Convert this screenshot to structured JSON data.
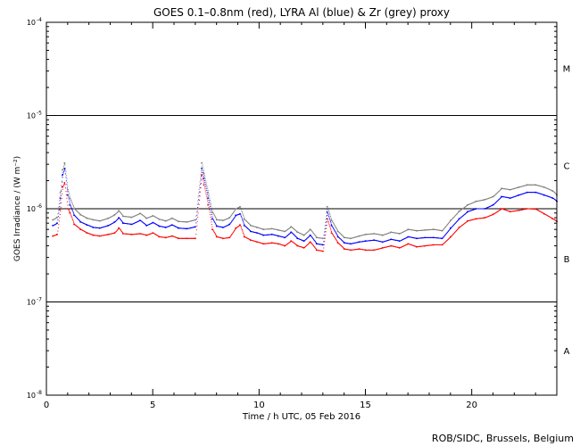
{
  "chart_data": {
    "type": "scatter",
    "title": "GOES 0.1–0.8nm (red), LYRA Al (blue) & Zr (grey) proxy",
    "xlabel": "Time / h UTC, 05 Feb 2016",
    "ylabel": "GOES Irradiance / (W m⁻²)",
    "xlim": [
      0,
      24
    ],
    "ylim": [
      1e-08,
      0.0001
    ],
    "yscale": "log",
    "x_ticks": [
      0,
      5,
      10,
      15,
      20
    ],
    "y_ticks": [
      {
        "value": 0.0001,
        "base": "10",
        "exp": "-4"
      },
      {
        "value": 1e-05,
        "base": "10",
        "exp": "-5"
      },
      {
        "value": 1e-06,
        "base": "10",
        "exp": "-6"
      },
      {
        "value": 1e-07,
        "base": "10",
        "exp": "-7"
      },
      {
        "value": 1e-08,
        "base": "10",
        "exp": "-8"
      }
    ],
    "class_lines": [
      1e-05,
      1e-06,
      1e-07
    ],
    "flare_classes": [
      {
        "label": "M",
        "y": 3.2e-05
      },
      {
        "label": "C",
        "y": 2.9e-06
      },
      {
        "label": "B",
        "y": 2.9e-07
      },
      {
        "label": "A",
        "y": 3e-08
      }
    ],
    "credit": "ROB/SIDC, Brussels, Belgium",
    "x": [
      0.3,
      0.5,
      0.65,
      0.75,
      0.85,
      1.0,
      1.1,
      1.3,
      1.6,
      1.9,
      2.2,
      2.5,
      2.9,
      3.2,
      3.4,
      3.6,
      4.0,
      4.4,
      4.7,
      5.0,
      5.3,
      5.6,
      5.9,
      6.2,
      6.6,
      7.0,
      7.3,
      7.4,
      7.6,
      7.8,
      8.0,
      8.3,
      8.6,
      8.9,
      9.1,
      9.3,
      9.6,
      9.9,
      10.2,
      10.6,
      10.9,
      11.2,
      11.5,
      11.8,
      12.1,
      12.4,
      12.7,
      13.0,
      13.2,
      13.4,
      13.7,
      14.0,
      14.3,
      14.7,
      15.0,
      15.4,
      15.8,
      16.2,
      16.6,
      17.0,
      17.4,
      17.8,
      18.2,
      18.6,
      19.0,
      19.4,
      19.8,
      20.2,
      20.6,
      21.0,
      21.4,
      21.8,
      22.2,
      22.6,
      23.0,
      23.4,
      23.8,
      24.0
    ],
    "series": [
      {
        "name": "GOES 0.1–0.8nm",
        "color": "#ff0000",
        "values": [
          5.1e-07,
          5.3e-07,
          9.8e-07,
          1.7e-06,
          1.9e-06,
          1e-06,
          9e-07,
          6.8e-07,
          6e-07,
          5.5e-07,
          5.2e-07,
          5.1e-07,
          5.3e-07,
          5.5e-07,
          6.2e-07,
          5.4e-07,
          5.3e-07,
          5.4e-07,
          5.2e-07,
          5.5e-07,
          5e-07,
          4.9e-07,
          5.1e-07,
          4.8e-07,
          4.8e-07,
          4.8e-07,
          2.3e-06,
          1.8e-06,
          1.1e-06,
          6e-07,
          5e-07,
          4.8e-07,
          4.9e-07,
          6.2e-07,
          6.7e-07,
          5e-07,
          4.6e-07,
          4.4e-07,
          4.2e-07,
          4.3e-07,
          4.2e-07,
          4e-07,
          4.5e-07,
          4e-07,
          3.8e-07,
          4.4e-07,
          3.6e-07,
          3.5e-07,
          7.8e-07,
          5.5e-07,
          4.3e-07,
          3.7e-07,
          3.6e-07,
          3.7e-07,
          3.6e-07,
          3.6e-07,
          3.8e-07,
          4e-07,
          3.8e-07,
          4.2e-07,
          3.9e-07,
          4e-07,
          4.1e-07,
          4.1e-07,
          5e-07,
          6.3e-07,
          7.4e-07,
          7.8e-07,
          8e-07,
          8.7e-07,
          1e-06,
          9.3e-07,
          9.6e-07,
          1e-06,
          9.9e-07,
          8.8e-07,
          7.8e-07,
          7.3e-07
        ]
      },
      {
        "name": "LYRA Al",
        "color": "#0000ff",
        "values": [
          6.6e-07,
          7e-07,
          1.3e-06,
          2.3e-06,
          2.7e-06,
          1.4e-06,
          1.1e-06,
          8.5e-07,
          7.2e-07,
          6.7e-07,
          6.3e-07,
          6.2e-07,
          6.6e-07,
          7.2e-07,
          8e-07,
          7e-07,
          6.8e-07,
          7.5e-07,
          6.6e-07,
          7.1e-07,
          6.5e-07,
          6.3e-07,
          6.7e-07,
          6.2e-07,
          6.1e-07,
          6.4e-07,
          2.7e-06,
          2.1e-06,
          1.3e-06,
          7.8e-07,
          6.5e-07,
          6.3e-07,
          6.8e-07,
          8.5e-07,
          8.8e-07,
          6.6e-07,
          5.7e-07,
          5.5e-07,
          5.2e-07,
          5.3e-07,
          5.1e-07,
          4.9e-07,
          5.6e-07,
          4.8e-07,
          4.5e-07,
          5.2e-07,
          4.2e-07,
          4.1e-07,
          9.2e-07,
          6.6e-07,
          5e-07,
          4.3e-07,
          4.2e-07,
          4.4e-07,
          4.5e-07,
          4.6e-07,
          4.4e-07,
          4.7e-07,
          4.5e-07,
          5e-07,
          4.8e-07,
          4.9e-07,
          4.9e-07,
          4.8e-07,
          6.2e-07,
          7.8e-07,
          9.3e-07,
          1e-06,
          1e-06,
          1.1e-06,
          1.35e-06,
          1.3e-06,
          1.4e-06,
          1.5e-06,
          1.5e-06,
          1.4e-06,
          1.3e-06,
          1.2e-06
        ]
      },
      {
        "name": "LYRA Zr",
        "color": "#7f7f7f",
        "values": [
          7.6e-07,
          8.1e-07,
          1.5e-06,
          2.6e-06,
          3.1e-06,
          1.6e-06,
          1.3e-06,
          1e-06,
          8.6e-07,
          7.9e-07,
          7.6e-07,
          7.4e-07,
          7.9e-07,
          8.6e-07,
          9.5e-07,
          8.3e-07,
          8.1e-07,
          8.9e-07,
          7.9e-07,
          8.4e-07,
          7.7e-07,
          7.4e-07,
          7.9e-07,
          7.3e-07,
          7.2e-07,
          7.6e-07,
          3.1e-06,
          2.4e-06,
          1.5e-06,
          9.2e-07,
          7.6e-07,
          7.5e-07,
          8e-07,
          1e-06,
          1.05e-06,
          7.7e-07,
          6.6e-07,
          6.3e-07,
          6e-07,
          6.1e-07,
          5.9e-07,
          5.7e-07,
          6.4e-07,
          5.6e-07,
          5.2e-07,
          6e-07,
          4.9e-07,
          4.8e-07,
          1.05e-06,
          7.5e-07,
          5.7e-07,
          4.9e-07,
          4.8e-07,
          5.1e-07,
          5.3e-07,
          5.4e-07,
          5.2e-07,
          5.6e-07,
          5.4e-07,
          6e-07,
          5.8e-07,
          5.9e-07,
          6e-07,
          5.8e-07,
          7.5e-07,
          9.4e-07,
          1.1e-06,
          1.2e-06,
          1.25e-06,
          1.35e-06,
          1.65e-06,
          1.6e-06,
          1.7e-06,
          1.8e-06,
          1.8e-06,
          1.7e-06,
          1.55e-06,
          1.4e-06
        ]
      }
    ]
  }
}
